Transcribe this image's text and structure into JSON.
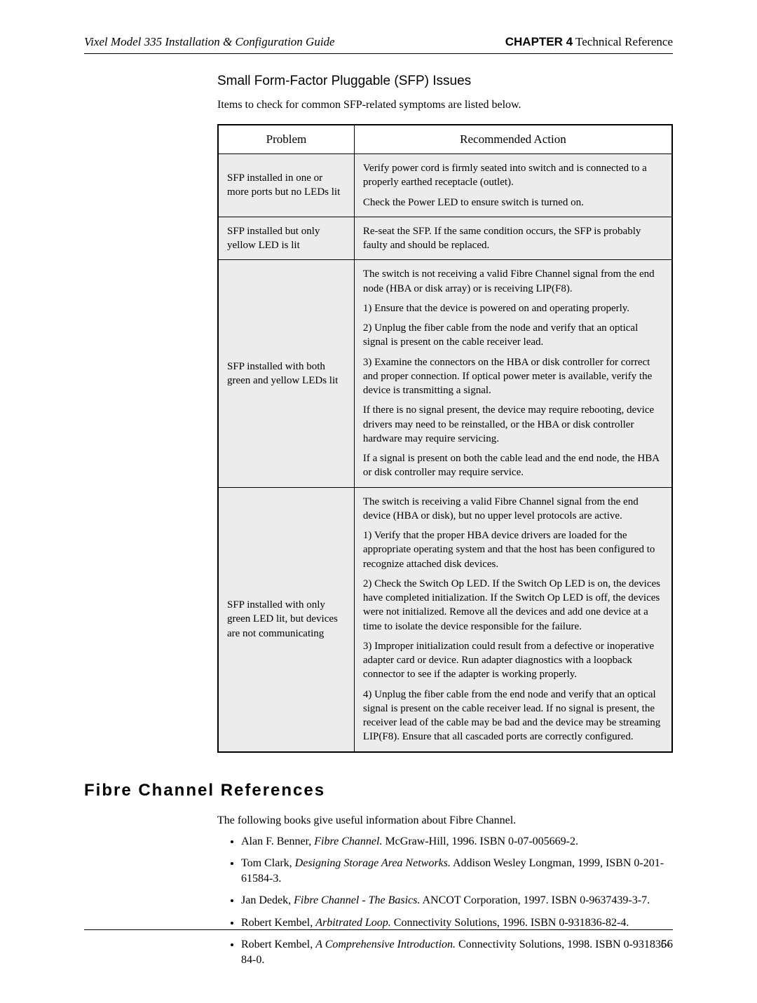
{
  "header": {
    "left": "Vixel Model 335 Installation & Configuration Guide",
    "chapter_label": "CHAPTER 4",
    "chapter_title": " Technical Reference"
  },
  "sfp_section": {
    "heading": "Small Form-Factor Pluggable (SFP) Issues",
    "intro": "Items to check for common SFP-related symptoms are listed below.",
    "columns": {
      "problem": "Problem",
      "action": "Recommended Action"
    },
    "rows": [
      {
        "problem": "SFP installed in one or more ports but no LEDs lit",
        "action": [
          "Verify power cord is firmly seated into switch and is connected to a properly earthed receptacle (outlet).",
          "Check the Power LED to ensure switch is turned on."
        ]
      },
      {
        "problem": "SFP installed but only yellow LED is lit",
        "action": [
          "Re-seat the SFP. If the same condition occurs, the SFP is probably faulty and should be replaced."
        ]
      },
      {
        "problem": "SFP installed with both green and yellow LEDs lit",
        "action": [
          "The switch is not receiving a valid Fibre Channel signal from the end node (HBA or disk array) or is receiving LIP(F8).",
          "1) Ensure that the device is powered on and operating properly.",
          "2) Unplug the fiber cable from the node and verify that an optical signal is present on the cable receiver lead.",
          "3) Examine the connectors on the HBA or disk controller for correct and proper connection. If optical power meter is available, verify the device is transmitting a signal.",
          "If there is no signal present, the device may require rebooting, device drivers may need to be reinstalled, or the HBA or disk controller hardware may require servicing.",
          "If a signal is present on both the cable lead and the end node, the HBA or disk controller may require service."
        ]
      },
      {
        "problem": "SFP installed with only green LED lit, but devices are not communicating",
        "action": [
          "The switch is receiving a valid Fibre Channel signal from the end device (HBA or disk), but no upper level protocols are active.",
          "1) Verify that the proper HBA device drivers are loaded for the appropriate operating system and that the host has been configured to recognize attached disk devices.",
          "2) Check the Switch Op LED. If the Switch Op LED is on, the devices have completed initialization. If the Switch Op LED is off, the devices were not initialized. Remove all the devices and add one device at a time to isolate the device responsible for the failure.",
          "3) Improper initialization could result from a defective or inoperative adapter card or device. Run adapter diagnostics with a loopback connector to see if the adapter is working properly.",
          "4) Unplug the fiber cable from the end node and verify that an optical signal is present on the cable receiver lead. If no signal is present, the receiver lead of the cable may be bad and the device may be streaming LIP(F8). Ensure that all cascaded ports are correctly configured."
        ]
      }
    ]
  },
  "fc_refs": {
    "heading": "Fibre Channel References",
    "intro": "The following books give useful information about Fibre Channel.",
    "items": [
      {
        "author": "Alan F. Benner, ",
        "title": "Fibre Channel.",
        "rest": " McGraw-Hill, 1996. ISBN 0-07-005669-2."
      },
      {
        "author": "Tom Clark, ",
        "title": "Designing Storage Area Networks.",
        "rest": " Addison Wesley Longman, 1999, ISBN 0-201-61584-3."
      },
      {
        "author": "Jan Dedek, ",
        "title": "Fibre Channel - The Basics.",
        "rest": " ANCOT Corporation, 1997. ISBN 0-9637439-3-7."
      },
      {
        "author": "Robert Kembel, ",
        "title": "Arbitrated Loop.",
        "rest": " Connectivity Solutions, 1996. ISBN 0-931836-82-4."
      },
      {
        "author": "Robert Kembel, ",
        "title": "A Comprehensive Introduction.",
        "rest": " Connectivity Solutions, 1998. ISBN 0-931836-84-0."
      }
    ]
  },
  "page_number": "56"
}
